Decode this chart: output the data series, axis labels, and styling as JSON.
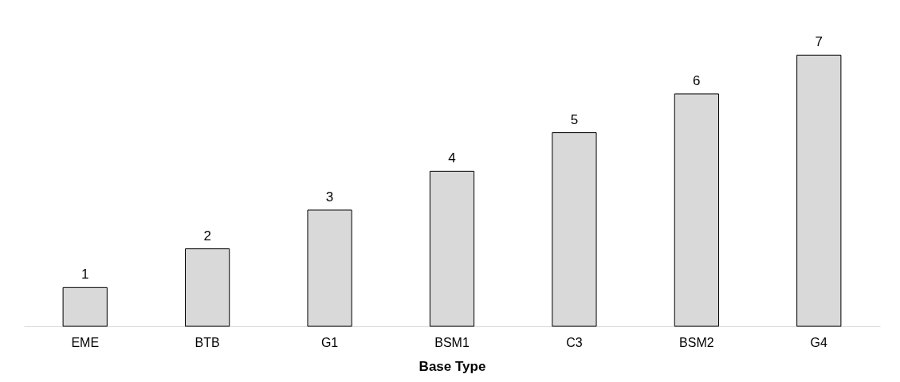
{
  "chart_data": {
    "type": "bar",
    "xlabel": "Base Type",
    "categories": [
      "EME",
      "BTB",
      "G1",
      "BSM1",
      "C3",
      "BSM2",
      "G4"
    ],
    "values": [
      1,
      2,
      3,
      4,
      5,
      6,
      7
    ],
    "color": "#d9d9d9",
    "data_labels": true,
    "grid": false
  }
}
